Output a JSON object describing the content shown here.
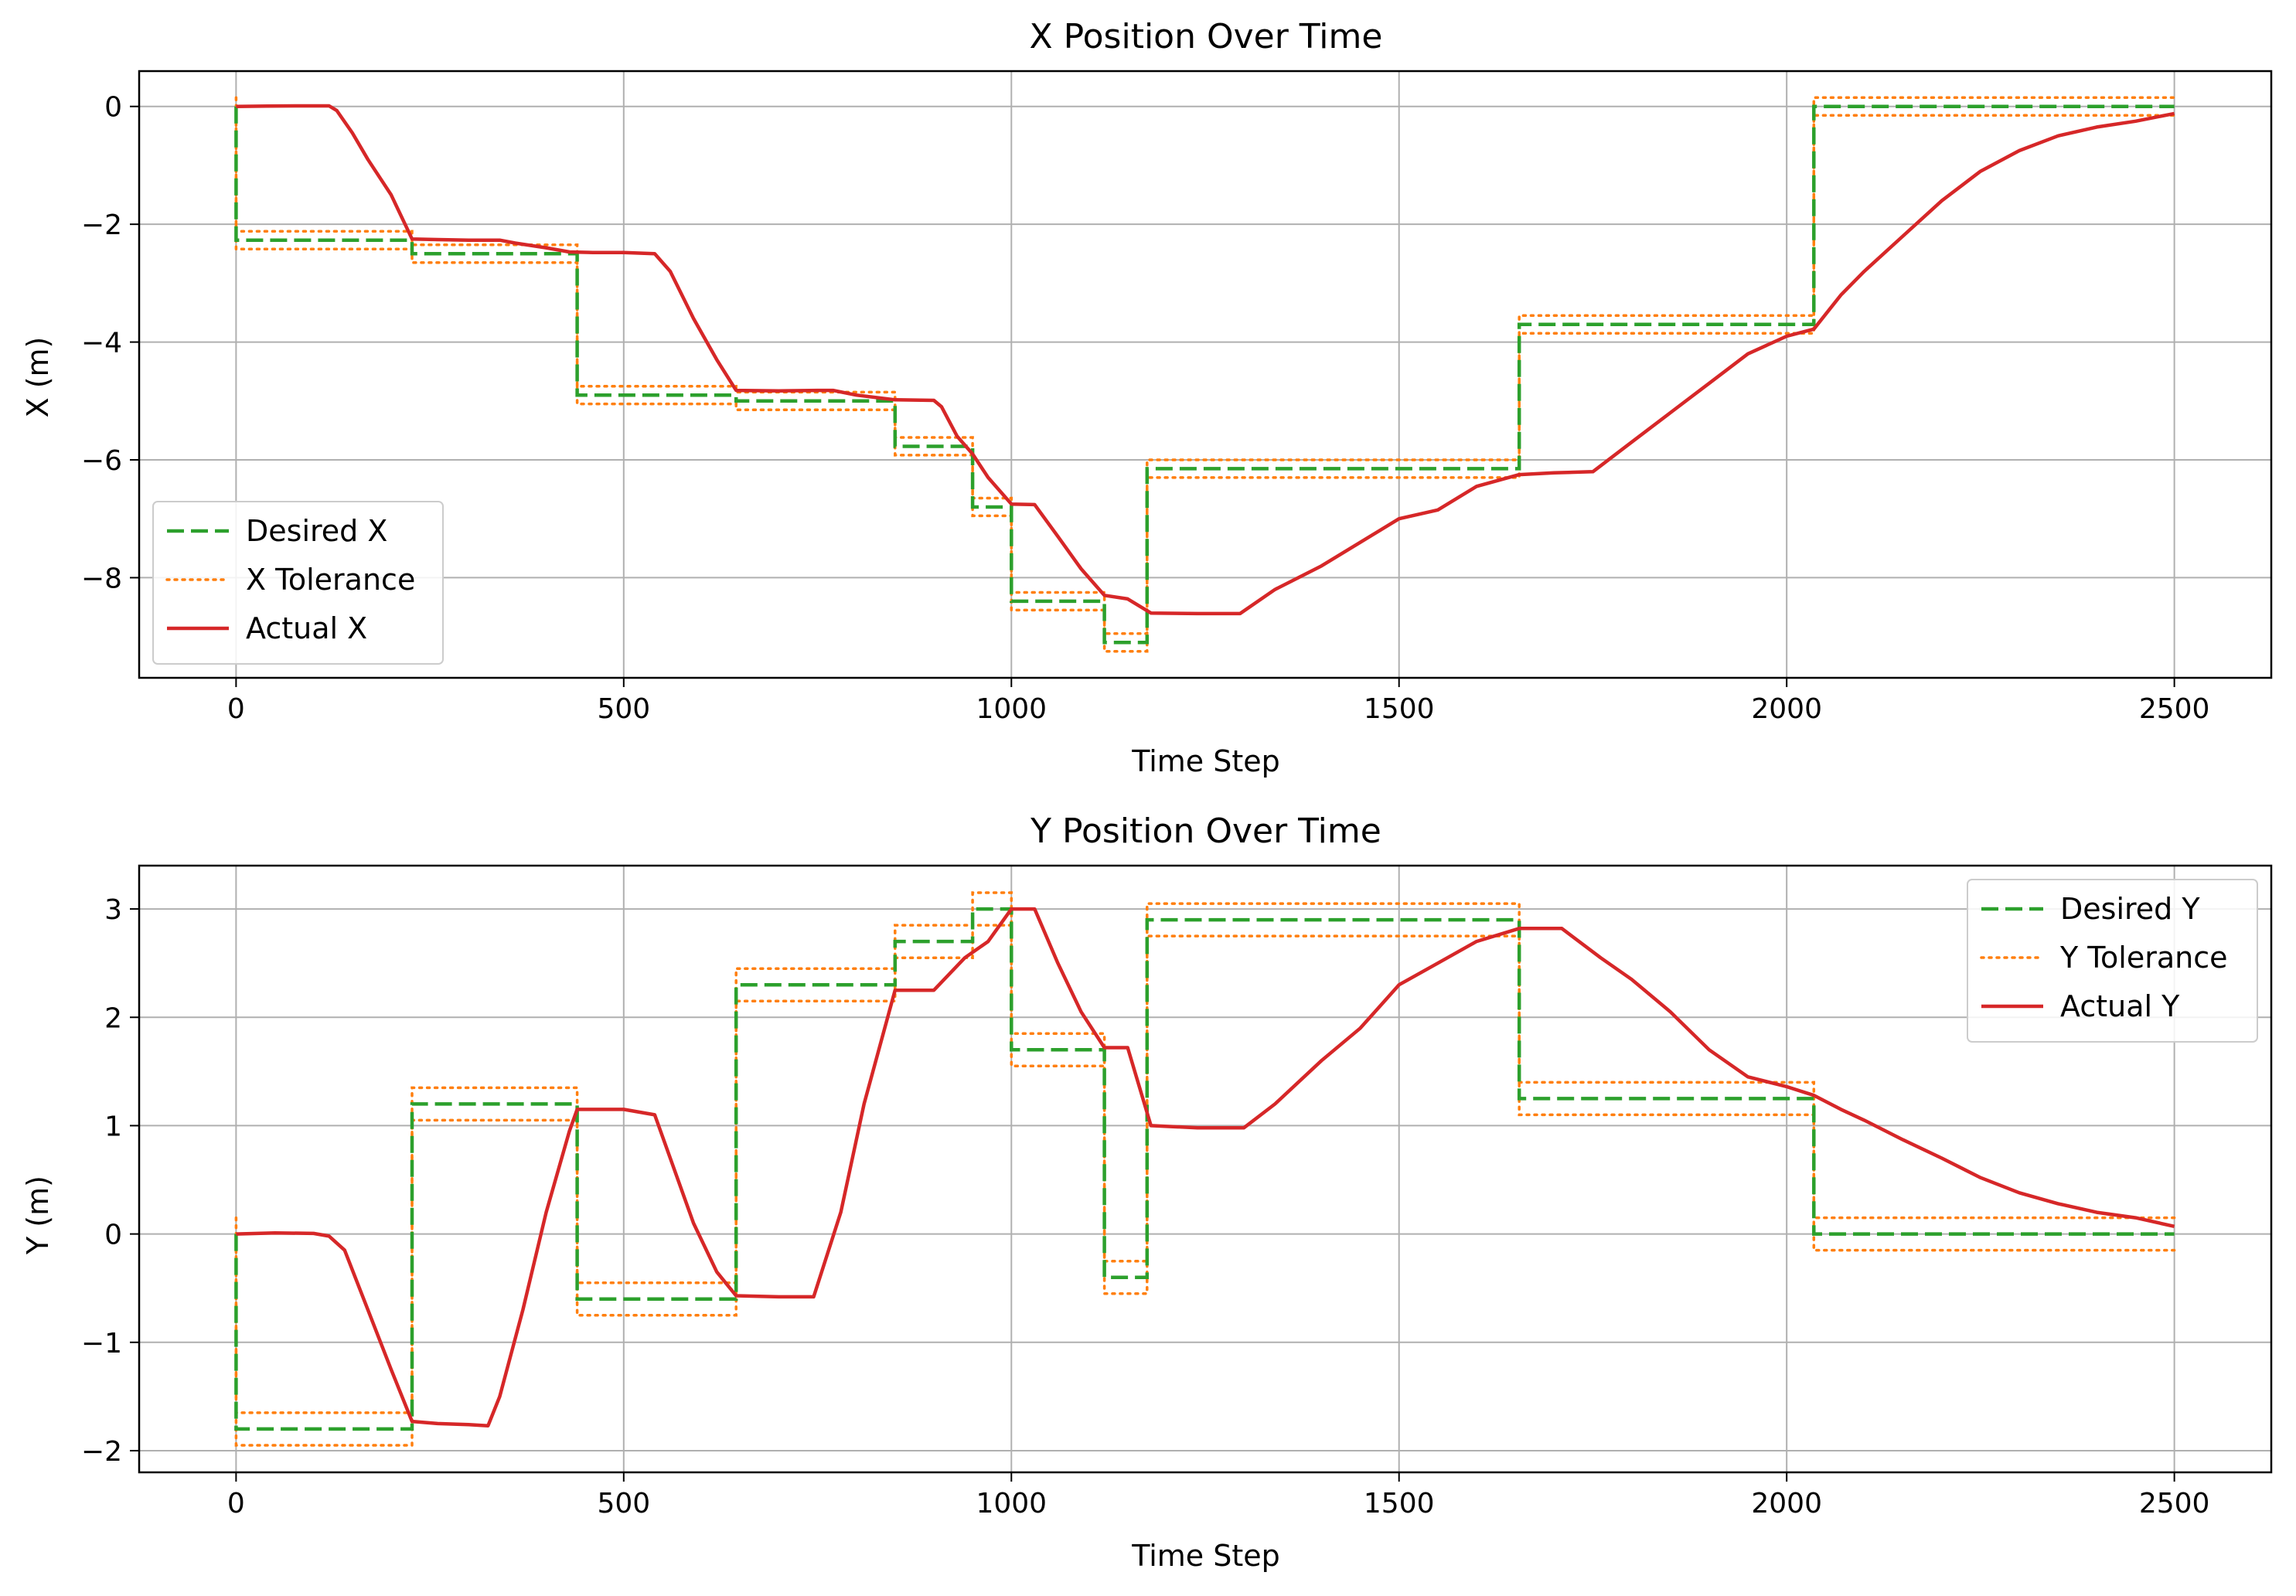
{
  "colors": {
    "desired": "#2ca02c",
    "tolerance": "#ff7f0e",
    "actual": "#d62728",
    "grid": "#b0b0b0",
    "axes": "#000000"
  },
  "chart_data": [
    {
      "type": "line",
      "title": "X Position Over Time",
      "xlabel": "Time Step",
      "ylabel": "X (m)",
      "xlim": [
        -125,
        2625
      ],
      "ylim": [
        -9.7,
        0.6
      ],
      "xticks": [
        0,
        500,
        1000,
        1500,
        2000,
        2500
      ],
      "xtick_labels": [
        "0",
        "500",
        "1000",
        "1500",
        "2000",
        "2500"
      ],
      "yticks": [
        0,
        -2,
        -4,
        -6,
        -8
      ],
      "ytick_labels": [
        "0",
        "−2",
        "−4",
        "−6",
        "−8"
      ],
      "grid": true,
      "legend_position": "lower-left",
      "tolerance": 0.15,
      "series": [
        {
          "name": "Desired X",
          "style": "dashed",
          "role": "desired",
          "x": [
            0,
            0,
            227,
            227,
            440,
            440,
            645,
            645,
            850,
            850,
            950,
            950,
            1000,
            1000,
            1120,
            1120,
            1175,
            1175,
            1655,
            1655,
            2035,
            2035,
            2500
          ],
          "y": [
            0,
            -2.27,
            -2.27,
            -2.5,
            -2.5,
            -4.9,
            -4.9,
            -5.0,
            -5.0,
            -5.77,
            -5.77,
            -6.8,
            -6.8,
            -8.4,
            -8.4,
            -9.1,
            -9.1,
            -6.15,
            -6.15,
            -3.7,
            -3.7,
            0,
            0
          ]
        },
        {
          "name": "X Tolerance",
          "style": "dotted",
          "role": "tolerance"
        },
        {
          "name": "Actual X",
          "style": "solid",
          "role": "actual",
          "x": [
            0,
            40,
            80,
            120,
            130,
            150,
            170,
            200,
            227,
            260,
            300,
            340,
            360,
            400,
            430,
            460,
            500,
            540,
            560,
            590,
            620,
            645,
            700,
            750,
            770,
            800,
            850,
            900,
            910,
            930,
            950,
            970,
            1000,
            1030,
            1060,
            1090,
            1120,
            1150,
            1180,
            1240,
            1295,
            1340,
            1400,
            1450,
            1500,
            1550,
            1600,
            1655,
            1700,
            1750,
            1800,
            1850,
            1900,
            1950,
            2000,
            2035,
            2070,
            2100,
            2150,
            2200,
            2250,
            2300,
            2350,
            2400,
            2450,
            2500
          ],
          "y": [
            0,
            0.005,
            0.01,
            0.01,
            -0.07,
            -0.45,
            -0.9,
            -1.5,
            -2.25,
            -2.26,
            -2.27,
            -2.27,
            -2.32,
            -2.4,
            -2.47,
            -2.48,
            -2.48,
            -2.5,
            -2.8,
            -3.6,
            -4.3,
            -4.82,
            -4.83,
            -4.82,
            -4.82,
            -4.9,
            -4.98,
            -4.99,
            -5.1,
            -5.6,
            -5.9,
            -6.3,
            -6.75,
            -6.76,
            -7.3,
            -7.85,
            -8.3,
            -8.36,
            -8.6,
            -8.61,
            -8.61,
            -8.2,
            -7.8,
            -7.4,
            -7.0,
            -6.85,
            -6.45,
            -6.25,
            -6.22,
            -6.2,
            -5.7,
            -5.2,
            -4.7,
            -4.2,
            -3.9,
            -3.78,
            -3.2,
            -2.8,
            -2.2,
            -1.6,
            -1.1,
            -0.75,
            -0.5,
            -0.35,
            -0.25,
            -0.12
          ]
        }
      ]
    },
    {
      "type": "line",
      "title": "Y Position Over Time",
      "xlabel": "Time Step",
      "ylabel": "Y (m)",
      "xlim": [
        -125,
        2625
      ],
      "ylim": [
        -2.2,
        3.4
      ],
      "xticks": [
        0,
        500,
        1000,
        1500,
        2000,
        2500
      ],
      "xtick_labels": [
        "0",
        "500",
        "1000",
        "1500",
        "2000",
        "2500"
      ],
      "yticks": [
        3,
        2,
        1,
        0,
        -1,
        -2
      ],
      "ytick_labels": [
        "3",
        "2",
        "1",
        "0",
        "−1",
        "−2"
      ],
      "grid": true,
      "legend_position": "upper-right",
      "tolerance": 0.15,
      "series": [
        {
          "name": "Desired Y",
          "style": "dashed",
          "role": "desired",
          "x": [
            0,
            0,
            227,
            227,
            440,
            440,
            645,
            645,
            850,
            850,
            950,
            950,
            1000,
            1000,
            1120,
            1120,
            1175,
            1175,
            1655,
            1655,
            2035,
            2035,
            2500
          ],
          "y": [
            0,
            -1.8,
            -1.8,
            1.2,
            1.2,
            -0.6,
            -0.6,
            2.3,
            2.3,
            2.7,
            2.7,
            3.0,
            3.0,
            1.7,
            1.7,
            -0.4,
            -0.4,
            2.9,
            2.9,
            1.25,
            1.25,
            0,
            0
          ]
        },
        {
          "name": "Y Tolerance",
          "style": "dotted",
          "role": "tolerance"
        },
        {
          "name": "Actual Y",
          "style": "solid",
          "role": "actual",
          "x": [
            0,
            50,
            100,
            120,
            140,
            170,
            200,
            227,
            260,
            300,
            325,
            340,
            370,
            400,
            430,
            440,
            460,
            500,
            540,
            560,
            590,
            620,
            645,
            700,
            745,
            780,
            810,
            850,
            900,
            940,
            970,
            1000,
            1030,
            1060,
            1090,
            1120,
            1150,
            1180,
            1240,
            1300,
            1340,
            1400,
            1450,
            1500,
            1550,
            1600,
            1655,
            1710,
            1760,
            1800,
            1850,
            1900,
            1950,
            2000,
            2035,
            2070,
            2100,
            2150,
            2200,
            2250,
            2300,
            2350,
            2400,
            2450,
            2500
          ],
          "y": [
            0,
            0.01,
            0.005,
            -0.02,
            -0.15,
            -0.7,
            -1.25,
            -1.73,
            -1.75,
            -1.76,
            -1.77,
            -1.5,
            -0.7,
            0.2,
            0.95,
            1.15,
            1.15,
            1.15,
            1.1,
            0.7,
            0.1,
            -0.35,
            -0.57,
            -0.58,
            -0.58,
            0.2,
            1.2,
            2.25,
            2.25,
            2.55,
            2.7,
            3.0,
            3.0,
            2.5,
            2.05,
            1.72,
            1.72,
            1.0,
            0.98,
            0.98,
            1.2,
            1.6,
            1.9,
            2.3,
            2.5,
            2.7,
            2.82,
            2.82,
            2.55,
            2.35,
            2.05,
            1.7,
            1.45,
            1.36,
            1.28,
            1.15,
            1.05,
            0.87,
            0.7,
            0.52,
            0.38,
            0.28,
            0.2,
            0.15,
            0.07
          ]
        }
      ]
    }
  ]
}
